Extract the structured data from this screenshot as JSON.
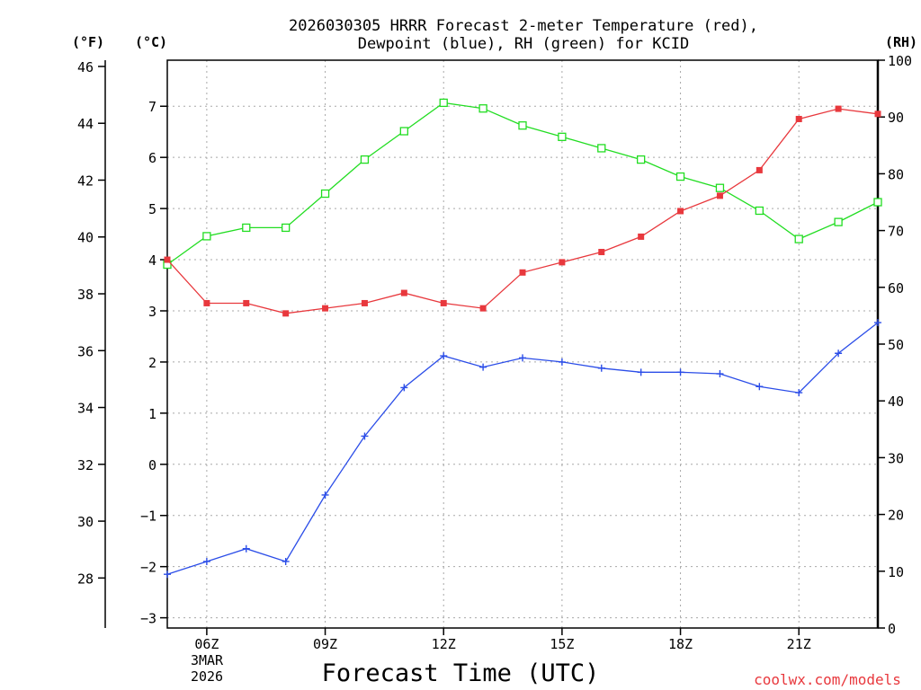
{
  "title_line1": "2026030305 HRRR Forecast 2-meter Temperature (red),",
  "title_line2": "Dewpoint (blue), RH (green) for KCID",
  "credit": "coolwx.com/models",
  "chart_data": {
    "type": "line",
    "title": "2026030305 HRRR Forecast 2-meter Temperature (red), Dewpoint (blue), RH (green) for KCID",
    "xlabel": "Forecast Time (UTC)",
    "date_label": [
      "3MAR",
      "2026"
    ],
    "hours": [
      5,
      6,
      7,
      8,
      9,
      10,
      11,
      12,
      13,
      14,
      15,
      16,
      17,
      18,
      19,
      20,
      21,
      22,
      23
    ],
    "x_ticks": [
      {
        "hour": 6,
        "label": "06Z"
      },
      {
        "hour": 9,
        "label": "09Z"
      },
      {
        "hour": 12,
        "label": "12Z"
      },
      {
        "hour": 15,
        "label": "15Z"
      },
      {
        "hour": 18,
        "label": "18Z"
      },
      {
        "hour": 21,
        "label": "21Z"
      }
    ],
    "xlim": [
      5,
      23
    ],
    "axes": {
      "fahrenheit": {
        "label": "(°F)",
        "ticks": [
          28,
          30,
          32,
          34,
          36,
          38,
          40,
          42,
          44,
          46
        ]
      },
      "celsius": {
        "label": "(°C)",
        "ticks": [
          -3,
          -2,
          -1,
          0,
          1,
          2,
          3,
          4,
          5,
          6,
          7
        ],
        "ylim": [
          -3.2,
          7.9
        ]
      },
      "rh": {
        "label": "(RH)",
        "ticks": [
          0,
          10,
          20,
          30,
          40,
          50,
          60,
          70,
          80,
          90,
          100
        ],
        "ylim": [
          0,
          100
        ]
      }
    },
    "series": [
      {
        "name": "Temperature",
        "axis": "celsius",
        "color": "#e8383d",
        "marker": "filled-square",
        "values": [
          4.0,
          3.15,
          3.15,
          2.95,
          3.05,
          3.15,
          3.35,
          3.15,
          3.05,
          3.75,
          3.95,
          4.15,
          4.45,
          4.95,
          5.25,
          5.75,
          6.75,
          6.95,
          6.85
        ]
      },
      {
        "name": "Dewpoint",
        "axis": "celsius",
        "color": "#2b4de8",
        "marker": "plus",
        "values": [
          -2.15,
          -1.9,
          -1.65,
          -1.9,
          -0.6,
          0.55,
          1.5,
          2.12,
          1.9,
          2.08,
          2.0,
          1.88,
          1.8,
          1.8,
          1.77,
          1.52,
          1.4,
          2.17,
          2.77
        ]
      },
      {
        "name": "RH",
        "axis": "rh",
        "color": "#22dd22",
        "marker": "open-square",
        "values": [
          64,
          69,
          70.5,
          70.5,
          76.5,
          82.5,
          87.5,
          92.5,
          91.5,
          88.5,
          86.5,
          84.5,
          82.5,
          79.5,
          77.5,
          73.5,
          68.5,
          71.5,
          75
        ]
      }
    ]
  }
}
